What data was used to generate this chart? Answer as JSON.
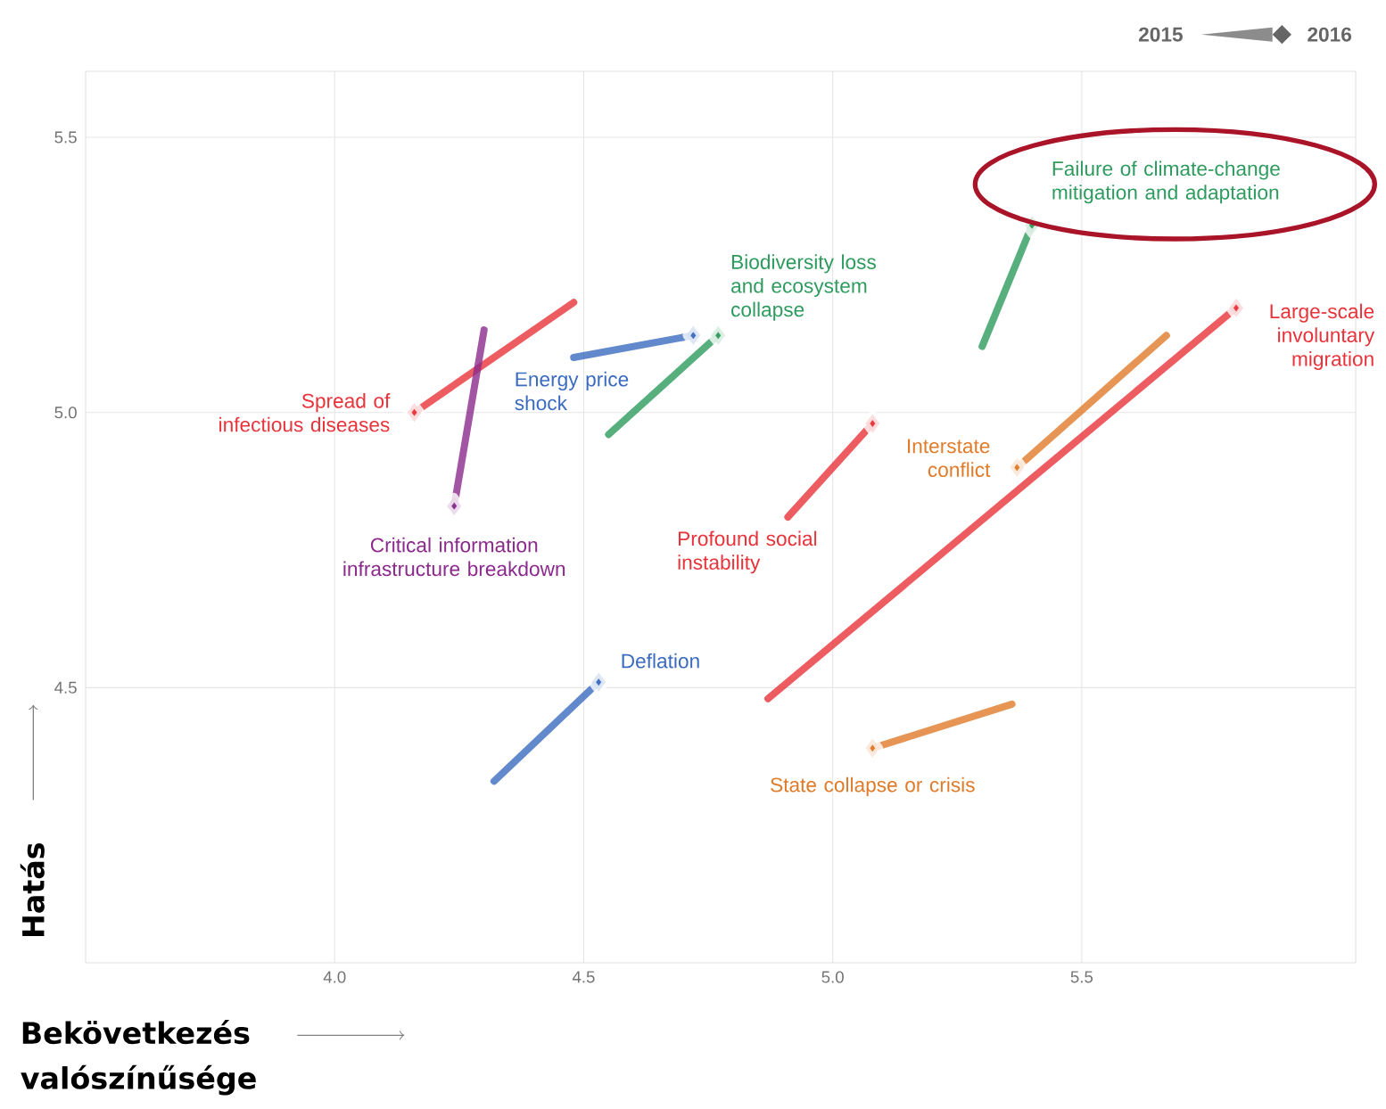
{
  "chart_data": {
    "type": "line",
    "xlabel": "Bekövetkezés valószínűsége",
    "ylabel": "Hatás",
    "xlim": [
      3.5,
      6.05
    ],
    "ylim": [
      4.0,
      5.62
    ],
    "xticks": [
      {
        "value": 4,
        "label": "4.0"
      },
      4.5,
      {
        "value": 5,
        "label": "5.0"
      },
      5.5
    ],
    "yticks": [
      4.5,
      {
        "value": 5,
        "label": "5.0"
      },
      5.5
    ],
    "grid": true,
    "marker": "diamond",
    "line_style": "solid",
    "annotations": [
      "2015",
      "2016"
    ],
    "series": [
      {
        "name": "Spread of infectious diseases",
        "color": "#e8333a",
        "x": [
          4.48,
          4.16
        ],
        "values": [
          5.2,
          5.0
        ]
      },
      {
        "name": "Critical information infrastructure breakdown",
        "color": "#8b2a8c",
        "x": [
          4.3,
          4.24
        ],
        "values": [
          5.15,
          4.83
        ]
      },
      {
        "name": "Energy price shock",
        "color": "#3a6bbf",
        "x": [
          4.48,
          4.72
        ],
        "values": [
          5.1,
          5.14
        ]
      },
      {
        "name": "Biodiversity loss and ecosystem collapse",
        "color": "#2e9b5e",
        "x": [
          4.55,
          4.77
        ],
        "values": [
          4.96,
          5.14
        ]
      },
      {
        "name": "Failure of climate-change mitigation and adaptation",
        "color": "#2e9b5e",
        "x": [
          5.3,
          5.4
        ],
        "values": [
          5.12,
          5.34
        ]
      },
      {
        "name": "Large-scale involuntary migration",
        "color": "#e8333a",
        "x": [
          4.87,
          5.81
        ],
        "values": [
          4.48,
          5.19
        ]
      },
      {
        "name": "Interstate conflict",
        "color": "#e07b2a",
        "x": [
          5.67,
          5.37
        ],
        "values": [
          5.14,
          4.9
        ]
      },
      {
        "name": "Profound social instability",
        "color": "#e8333a",
        "x": [
          4.91,
          5.08
        ],
        "values": [
          4.81,
          4.98
        ]
      },
      {
        "name": "Deflation",
        "color": "#3a6bbf",
        "x": [
          4.32,
          4.53
        ],
        "values": [
          4.33,
          4.51
        ]
      },
      {
        "name": "State collapse or crisis",
        "color": "#e07b2a",
        "x": [
          5.36,
          5.08
        ],
        "values": [
          4.47,
          4.39
        ]
      }
    ]
  }
}
